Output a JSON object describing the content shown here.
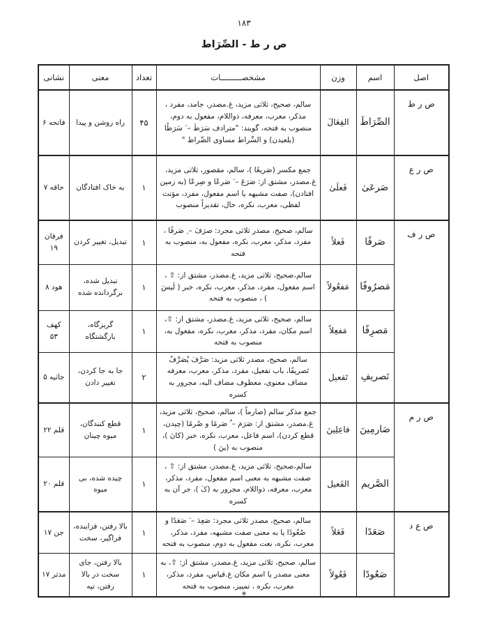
{
  "page": {
    "number": "۱۸۳",
    "title": "ص ر ط - الصِّرَاط",
    "footnote_star": "*"
  },
  "table": {
    "headers": {
      "asl": "اصل",
      "ism": "اسم",
      "vazn": "وزن",
      "moshakhasat": "مشخصـــــــــات",
      "tedad": "تعداد",
      "mani": "معنی",
      "neshani": "نشانی"
    },
    "rows": [
      {
        "asl": "ص ر ط",
        "ism": "الصِّرَاطَ",
        "vazn": "الفِعَالَ",
        "moshakhasat": "سالم، صحیح، ثلاثی مزید، غ.مصدر، جامد، مفرد ، مذکر، معرب، معرفه، ذواللام، مفعول به دوم، منصوب به فتحه، گویند: \"مترادف سَرَطَ – َ سَرَطًا (بلعیدن) و السِّراط مساوی الصِّراط \"",
        "tedad": "۴۵",
        "mani": "راه روشن و پیدا",
        "neshani": "فاتحه ۶"
      },
      {
        "asl": "ص ر ع",
        "ism": "صَرعَىٰ",
        "vazn": "فَعلَىٰ",
        "moshakhasat": "جمع مکسر (صَریعًا )، سالم، مقصور، ثلاثی مزید، غ.مصدر، مشتق از: صَرَعَ – َ صَرعًا و صِرعًا (به زمین افتادن)، صفت مشبهه یا اسم مفعول، مفرد، مؤنث لفظی، معرب، نکره، حال، تقدیراً منصوب",
        "tedad": "۱",
        "mani": "به خاک افتادگان",
        "neshani": "حاقه ۷"
      },
      {
        "asl": "ص ر ف",
        "ism": "صَرفًا",
        "vazn": "فَعلاً",
        "moshakhasat": "سالم، صحیح، مصدر ثلاثی مجرد: صرَفَ – ِ صَرفًا ، مفرد، مذکر، معرب، نکره، مفعول به، منصوب به فتحه",
        "tedad": "۱",
        "mani": "تبدیل، تغییر کردن",
        "neshani": "فرقان ۱۹"
      },
      {
        "ism": "مَصرُوفًا",
        "vazn": "مَفعُولاً",
        "moshakhasat": "سالم،صحیح، ثلاثی مزید، غ.مصدر، مشتق از: ⇧ ، اسم مفعول، مفرد، مذکر، معرب، نکره، خبر ( لَیسَ ) ، منصوب به فتحه",
        "tedad": "۱",
        "mani": "تبدیل شده، برگردانده شده",
        "neshani": "هود ۸"
      },
      {
        "ism": "مَصرِفًا",
        "vazn": "مَفعِلاً",
        "moshakhasat": "سالم، صحیح، ثلاثی مزید، غ.مصدر، مشتق از: ⇧، اسم مکان، مفرد، مذکر، معرب، نکره، مفعول به، منصوب به فتحه",
        "tedad": "۱",
        "mani": "گریزگاه، بازگشتگاه",
        "neshani": "کهف ۵۳"
      },
      {
        "ism": "تَصریفِ",
        "vazn": "تَفعیل",
        "moshakhasat": "سالم، صحیح، مصدر ثلاثی مزید: صَرَّفَ یُصَرِّفُ تَصریفًا، باب تفعیل، مفرد، مذکر، معرب، معرفه مضاف معنوی، معطوف مضاف الیه، مجرور به کسره",
        "tedad": "۲",
        "mani": "جا به جا کردن، تغییر دادن",
        "neshani": "جاثیه ۵"
      },
      {
        "asl": "ص ر م",
        "ism": "صَارمِینَ",
        "vazn": "فاعِلِینَ",
        "moshakhasat": "جمع مذکر سالم (صارماً )، سالم، صحیح، ثلاثی مزید، غ.مصدر، مشتق از: صَرَمَ – ُ صَرمًا و صُرمًا (چیدن، قطع کردن)، اسم فاعل، معرب، نکره، خبر (کانَ )، منصوب به (ینَ )",
        "tedad": "۱",
        "mani": "قطع کنندگان، میوه چینان",
        "neshani": "قلم ۲۲"
      },
      {
        "ism": "الصَّریم",
        "vazn": "الفَعیل",
        "moshakhasat": "سالم،صحیح، ثلاثی مزید، غ.مصدر، مشتق از: ⇧ ، صفت مشبهه به معنی اسم مفعول، مفرد، مذکر، معرب، معرفه، ذواللام، مجرور به (کَ )، جر آن به کسره",
        "tedad": "۱",
        "mani": "چیده شده، بی میوه",
        "neshani": "قلم ۲۰"
      },
      {
        "asl": "ص ع د",
        "ism": "صَعَدًا",
        "vazn": "فَعَلاً",
        "moshakhasat": "سالم، صحیح، مصدر ثلاثی مجرد: صَعِدَ – َ صَعَدًا و صُعُودًا یا به معنی صفت مشبهه، مفرد، مذکر، معرب، نکره، نعت مفعول به دوم، منصوب به فتحه",
        "tedad": "۱",
        "mani": "بالا رفتن، فزاینده، فراگیر، سخت",
        "neshani": "جن ۱۷"
      },
      {
        "ism": "صَعُودًا",
        "vazn": "فَعُولاً",
        "moshakhasat": "سالم، صحیح، ثلاثی مزید، غ.مصدر، مشتق از: ⇧، به معنی مصدر یا اسم مکان غ.قیاس، مفرد، مذکر، معرب، نکره ، تمییز، منصوب به فتحه",
        "tedad": "۱",
        "mani": "بالا رفتن، جای سخت در بالا رفتن، تپه",
        "neshani": "مدثر ۱۷"
      }
    ]
  }
}
